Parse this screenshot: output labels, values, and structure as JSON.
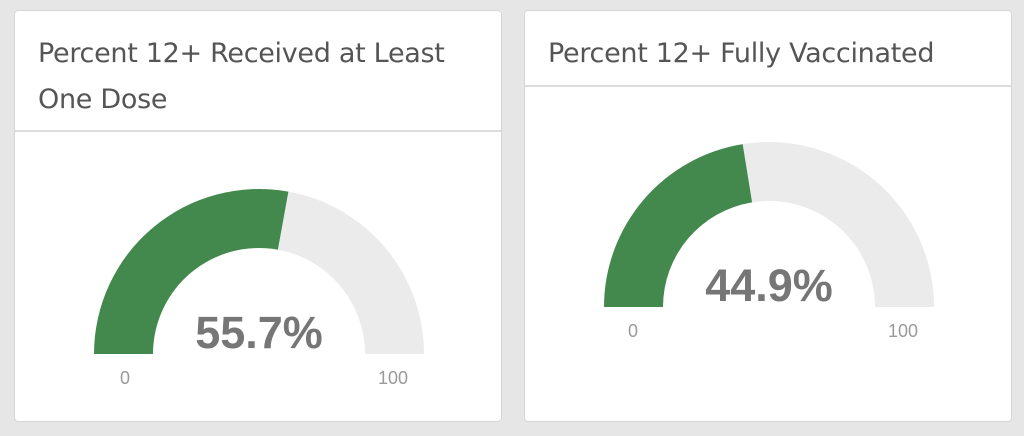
{
  "colors": {
    "fill": "#43894e",
    "track": "#ebebeb",
    "value_text": "#767676",
    "tick_text": "#9a9a9a"
  },
  "chart_data": [
    {
      "type": "gauge",
      "title": "Percent 12+ Received at Least One Dose",
      "value": 55.7,
      "value_label": "55.7%",
      "min": 0,
      "max": 100,
      "min_label": "0",
      "max_label": "100"
    },
    {
      "type": "gauge",
      "title": "Percent 12+ Fully Vaccinated",
      "value": 44.9,
      "value_label": "44.9%",
      "min": 0,
      "max": 100,
      "min_label": "0",
      "max_label": "100"
    }
  ]
}
